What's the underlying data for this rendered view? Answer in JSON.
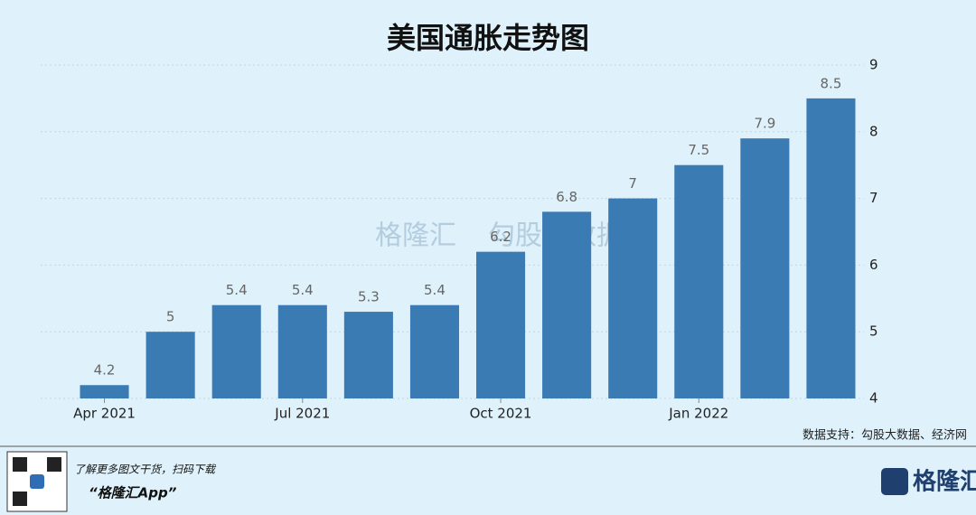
{
  "chart_data": {
    "type": "bar",
    "title": "美国通胀走势图",
    "categories": [
      "Apr 2021",
      null,
      null,
      "Jul 2021",
      null,
      null,
      "Oct 2021",
      null,
      null,
      "Jan 2022",
      null,
      null
    ],
    "values": [
      4.2,
      5,
      5.4,
      5.4,
      5.3,
      5.4,
      6.2,
      6.8,
      7,
      7.5,
      7.9,
      8.5
    ],
    "color": "#3b7bb4",
    "ylim": [
      4,
      9
    ],
    "yticks": [
      4,
      5,
      6,
      7,
      8,
      9
    ],
    "y_axis_side": "right",
    "grid": true,
    "watermark": [
      "格隆汇",
      "勾股大数据"
    ],
    "source": "数据支持：勾股大数据、经济网"
  },
  "footer": {
    "promo": "了解更多图文干货，扫码下载",
    "app": "“格隆汇App”",
    "logo": "格隆汇"
  }
}
